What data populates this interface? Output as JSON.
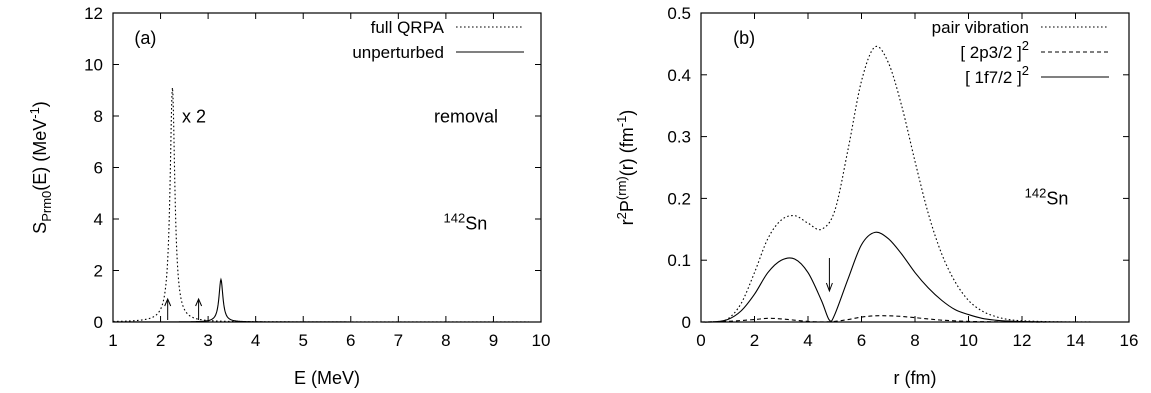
{
  "chart_data": [
    {
      "type": "line",
      "panel_label": "(a)",
      "xlabel": "E (MeV)",
      "ylabel": {
        "base": "S",
        "sub": "Prm0",
        "mid": "(E) (MeV",
        "sup": "-1",
        "end": ")"
      },
      "xlim": [
        1,
        10
      ],
      "ylim": [
        0,
        12
      ],
      "xticks": [
        1,
        2,
        3,
        4,
        5,
        6,
        7,
        8,
        9,
        10
      ],
      "yticks": [
        0,
        2,
        4,
        6,
        8,
        10,
        12
      ],
      "grid": false,
      "legend_position": "top-right",
      "annotations": {
        "scale": "x 2",
        "mode": "removal",
        "nucleus_mass": "142",
        "nucleus_symbol": "Sn"
      },
      "arrow_markers_x": [
        2.15,
        2.8
      ],
      "series": [
        {
          "name": "full QRPA",
          "style": "dotted",
          "peaks": [
            {
              "E": 2.25,
              "height": 9.1,
              "width": 0.06
            }
          ]
        },
        {
          "name": "unperturbed",
          "style": "solid",
          "peaks": [
            {
              "E": 3.27,
              "height": 1.65,
              "width": 0.05
            }
          ]
        }
      ]
    },
    {
      "type": "line",
      "panel_label": "(b)",
      "xlabel": "r (fm)",
      "ylabel": {
        "base": "r",
        "sup1": "2",
        "mid": "P",
        "sup2": "(rm)",
        "mid2": "(r) (fm",
        "sup3": "-1",
        "end": ")"
      },
      "xlim": [
        0,
        16
      ],
      "ylim": [
        0,
        0.5
      ],
      "xticks": [
        0,
        2,
        4,
        6,
        8,
        10,
        12,
        14,
        16
      ],
      "yticks": [
        0,
        0.1,
        0.2,
        0.3,
        0.4,
        0.5
      ],
      "grid": false,
      "legend_position": "top-right",
      "annotations": {
        "nucleus_mass": "142",
        "nucleus_symbol": "Sn"
      },
      "arrow_marker_x": 4.8,
      "series": [
        {
          "name": "pair vibration",
          "style": "dotted",
          "x": [
            0,
            0.5,
            1,
            1.5,
            2,
            2.5,
            3,
            3.5,
            4,
            4.5,
            5,
            5.5,
            6,
            6.5,
            7,
            7.5,
            8,
            8.5,
            9,
            9.5,
            10,
            10.5,
            11,
            11.5,
            12,
            13,
            14,
            15,
            16
          ],
          "y": [
            0,
            0.0005,
            0.005,
            0.03,
            0.08,
            0.135,
            0.165,
            0.172,
            0.16,
            0.15,
            0.18,
            0.28,
            0.39,
            0.445,
            0.42,
            0.35,
            0.26,
            0.175,
            0.11,
            0.065,
            0.035,
            0.018,
            0.009,
            0.004,
            0.002,
            0.0005,
            0.0001,
            0,
            0
          ]
        },
        {
          "name": "[ 2p3/2 ]",
          "name_sup": "2",
          "style": "dashed",
          "x": [
            0,
            1,
            2,
            2.5,
            3,
            3.5,
            4,
            4.5,
            5,
            5.5,
            6,
            6.5,
            7,
            7.5,
            8,
            8.5,
            9,
            10,
            11,
            12,
            14,
            16
          ],
          "y": [
            0,
            0.001,
            0.004,
            0.006,
            0.005,
            0.003,
            0.001,
            0.0002,
            0.001,
            0.004,
            0.008,
            0.01,
            0.01,
            0.009,
            0.007,
            0.005,
            0.003,
            0.001,
            0.0003,
            0,
            0,
            0
          ]
        },
        {
          "name": "[ 1f7/2 ]",
          "name_sup": "2",
          "style": "solid",
          "x": [
            0,
            0.5,
            1,
            1.5,
            2,
            2.5,
            3,
            3.5,
            4,
            4.5,
            4.8,
            5,
            5.5,
            6,
            6.5,
            7,
            7.5,
            8,
            8.5,
            9,
            9.5,
            10,
            10.5,
            11,
            11.5,
            12,
            13,
            14,
            16
          ],
          "y": [
            0,
            0.0003,
            0.004,
            0.018,
            0.045,
            0.08,
            0.1,
            0.102,
            0.08,
            0.035,
            0.003,
            0.012,
            0.07,
            0.125,
            0.145,
            0.135,
            0.11,
            0.08,
            0.055,
            0.035,
            0.02,
            0.012,
            0.006,
            0.003,
            0.0015,
            0.0007,
            0.0002,
            0,
            0
          ]
        }
      ]
    }
  ]
}
